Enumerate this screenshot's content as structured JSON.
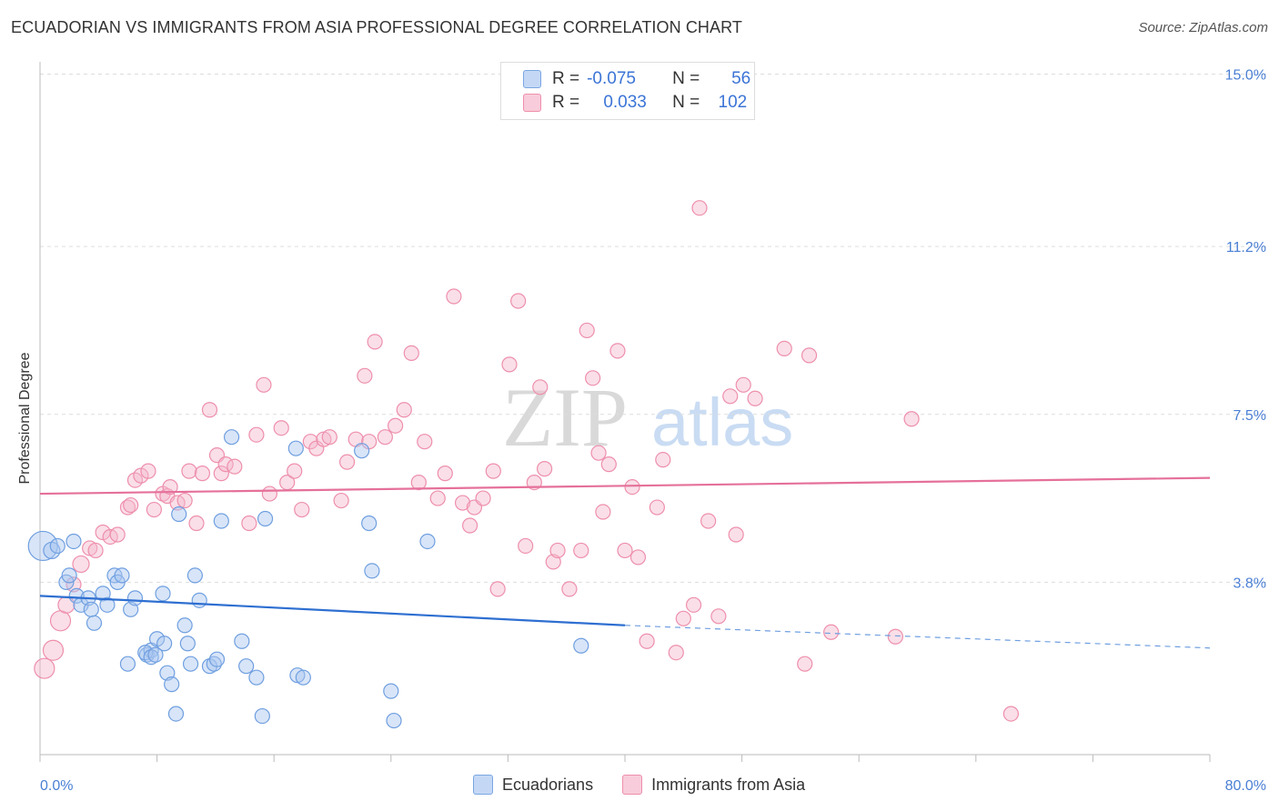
{
  "header": {
    "title": "ECUADORIAN VS IMMIGRANTS FROM ASIA PROFESSIONAL DEGREE CORRELATION CHART",
    "source": "Source: ZipAtlas.com"
  },
  "watermark": {
    "zip": "ZIP",
    "atlas": "atlas"
  },
  "legend": {
    "rows": [
      {
        "r_label": "R =",
        "r_value": "-0.075",
        "n_label": "N =",
        "n_value": "56",
        "color": "#a9c6ef"
      },
      {
        "r_label": "R =",
        "r_value": "0.033",
        "n_label": "N =",
        "n_value": "102",
        "color": "#f5b8cb"
      }
    ]
  },
  "bottom_legend": {
    "items": [
      {
        "label": "Ecuadorians",
        "color": "#a9c6ef"
      },
      {
        "label": "Immigrants from Asia",
        "color": "#f5b8cb"
      }
    ]
  },
  "chart_data": {
    "type": "scatter",
    "title": "ECUADORIAN VS IMMIGRANTS FROM ASIA PROFESSIONAL DEGREE CORRELATION CHART",
    "xlabel": "",
    "ylabel": "Professional Degree",
    "xlim": [
      0,
      80
    ],
    "ylim": [
      0,
      15
    ],
    "x_tick_labels": [
      "0.0%",
      "80.0%"
    ],
    "y_ticks": [
      3.8,
      7.5,
      11.2,
      15.0
    ],
    "y_tick_labels": [
      "3.8%",
      "7.5%",
      "11.2%",
      "15.0%"
    ],
    "grid": "horizontal-dashed",
    "series": [
      {
        "name": "Ecuadorians",
        "color": "#6f9fe0",
        "fill": "#a9c6ef",
        "trend": {
          "x0": 0,
          "y0": 3.5,
          "x1": 40,
          "y1": 2.85,
          "x_dash_end": 80,
          "y_dash_end": 2.35
        },
        "points": [
          [
            0.2,
            4.6,
            16
          ],
          [
            0.8,
            4.5,
            9
          ],
          [
            1.2,
            4.6,
            8
          ],
          [
            2.3,
            4.7,
            8
          ],
          [
            1.8,
            3.8,
            8
          ],
          [
            2.0,
            3.95,
            8
          ],
          [
            2.5,
            3.5,
            8
          ],
          [
            2.8,
            3.3,
            8
          ],
          [
            3.3,
            3.45,
            8
          ],
          [
            3.5,
            3.2,
            8
          ],
          [
            3.7,
            2.9,
            8
          ],
          [
            4.3,
            3.55,
            8
          ],
          [
            4.6,
            3.3,
            8
          ],
          [
            5.1,
            3.95,
            8
          ],
          [
            5.3,
            3.8,
            8
          ],
          [
            5.6,
            3.95,
            8
          ],
          [
            6.2,
            3.2,
            8
          ],
          [
            6.5,
            3.45,
            8
          ],
          [
            7.3,
            2.2,
            8
          ],
          [
            7.6,
            2.3,
            8
          ],
          [
            7.2,
            2.25,
            8
          ],
          [
            8.0,
            2.55,
            8
          ],
          [
            8.5,
            2.45,
            8
          ],
          [
            7.6,
            2.15,
            8
          ],
          [
            7.9,
            2.2,
            8
          ],
          [
            8.4,
            3.55,
            8
          ],
          [
            8.7,
            1.8,
            8
          ],
          [
            9.0,
            1.55,
            8
          ],
          [
            9.3,
            0.9,
            8
          ],
          [
            9.5,
            5.3,
            8
          ],
          [
            9.9,
            2.85,
            8
          ],
          [
            10.1,
            2.45,
            8
          ],
          [
            10.3,
            2.0,
            8
          ],
          [
            10.6,
            3.95,
            8
          ],
          [
            10.9,
            3.4,
            8
          ],
          [
            11.6,
            1.95,
            8
          ],
          [
            11.9,
            2.0,
            8
          ],
          [
            12.1,
            2.1,
            8
          ],
          [
            12.4,
            5.15,
            8
          ],
          [
            13.1,
            7.0,
            8
          ],
          [
            13.8,
            2.5,
            8
          ],
          [
            14.1,
            1.95,
            8
          ],
          [
            14.8,
            1.7,
            8
          ],
          [
            15.2,
            0.85,
            8
          ],
          [
            15.4,
            5.2,
            8
          ],
          [
            17.5,
            6.75,
            8
          ],
          [
            17.6,
            1.75,
            8
          ],
          [
            18.0,
            1.7,
            8
          ],
          [
            22.0,
            6.7,
            8
          ],
          [
            22.5,
            5.1,
            8
          ],
          [
            22.7,
            4.05,
            8
          ],
          [
            24.0,
            1.4,
            8
          ],
          [
            24.2,
            0.75,
            8
          ],
          [
            26.5,
            4.7,
            8
          ],
          [
            37.0,
            2.4,
            8
          ],
          [
            6.0,
            2.0,
            8
          ]
        ]
      },
      {
        "name": "Immigrants from Asia",
        "color": "#ee8fac",
        "fill": "#f5b8cb",
        "trend": {
          "x0": 0,
          "y0": 5.75,
          "x1": 80,
          "y1": 6.1
        },
        "points": [
          [
            0.3,
            1.9,
            11
          ],
          [
            0.9,
            2.3,
            11
          ],
          [
            1.4,
            2.95,
            11
          ],
          [
            1.8,
            3.3,
            9
          ],
          [
            2.3,
            3.75,
            8
          ],
          [
            2.8,
            4.2,
            9
          ],
          [
            3.4,
            4.55,
            8
          ],
          [
            3.8,
            4.5,
            8
          ],
          [
            4.3,
            4.9,
            8
          ],
          [
            4.8,
            4.8,
            8
          ],
          [
            5.3,
            4.85,
            8
          ],
          [
            6.0,
            5.45,
            8
          ],
          [
            6.2,
            5.5,
            8
          ],
          [
            6.5,
            6.05,
            8
          ],
          [
            6.9,
            6.15,
            8
          ],
          [
            7.4,
            6.25,
            8
          ],
          [
            7.8,
            5.4,
            8
          ],
          [
            8.4,
            5.75,
            8
          ],
          [
            8.7,
            5.7,
            8
          ],
          [
            8.9,
            5.9,
            8
          ],
          [
            9.4,
            5.55,
            8
          ],
          [
            9.9,
            5.6,
            8
          ],
          [
            10.2,
            6.25,
            8
          ],
          [
            10.7,
            5.1,
            8
          ],
          [
            11.1,
            6.2,
            8
          ],
          [
            11.6,
            7.6,
            8
          ],
          [
            12.1,
            6.6,
            8
          ],
          [
            12.4,
            6.2,
            8
          ],
          [
            12.7,
            6.4,
            8
          ],
          [
            13.3,
            6.35,
            8
          ],
          [
            14.3,
            5.1,
            8
          ],
          [
            14.8,
            7.05,
            8
          ],
          [
            15.3,
            8.15,
            8
          ],
          [
            15.7,
            5.75,
            8
          ],
          [
            16.5,
            7.2,
            8
          ],
          [
            16.9,
            6.0,
            8
          ],
          [
            17.4,
            6.25,
            8
          ],
          [
            17.9,
            5.4,
            8
          ],
          [
            18.5,
            6.9,
            8
          ],
          [
            18.9,
            6.75,
            8
          ],
          [
            19.4,
            6.95,
            8
          ],
          [
            19.8,
            7.0,
            8
          ],
          [
            20.6,
            5.6,
            8
          ],
          [
            21.0,
            6.45,
            8
          ],
          [
            21.6,
            6.95,
            8
          ],
          [
            22.2,
            8.35,
            8
          ],
          [
            22.5,
            6.9,
            8
          ],
          [
            22.9,
            9.1,
            8
          ],
          [
            23.6,
            7.0,
            8
          ],
          [
            24.3,
            7.25,
            8
          ],
          [
            24.9,
            7.6,
            8
          ],
          [
            25.4,
            8.85,
            8
          ],
          [
            25.9,
            6.0,
            8
          ],
          [
            26.3,
            6.9,
            8
          ],
          [
            27.2,
            5.65,
            8
          ],
          [
            27.7,
            6.2,
            8
          ],
          [
            28.3,
            10.1,
            8
          ],
          [
            28.9,
            5.55,
            8
          ],
          [
            29.4,
            5.05,
            8
          ],
          [
            29.7,
            5.45,
            8
          ],
          [
            30.3,
            5.65,
            8
          ],
          [
            31.0,
            6.25,
            8
          ],
          [
            31.3,
            3.65,
            8
          ],
          [
            32.1,
            8.6,
            8
          ],
          [
            32.7,
            10.0,
            8
          ],
          [
            33.2,
            4.6,
            8
          ],
          [
            33.8,
            6.0,
            8
          ],
          [
            34.2,
            8.1,
            8
          ],
          [
            34.5,
            6.3,
            8
          ],
          [
            35.1,
            4.25,
            8
          ],
          [
            35.4,
            4.5,
            8
          ],
          [
            36.2,
            3.65,
            8
          ],
          [
            37.0,
            4.5,
            8
          ],
          [
            37.4,
            9.35,
            8
          ],
          [
            37.8,
            8.3,
            8
          ],
          [
            38.2,
            6.65,
            8
          ],
          [
            38.5,
            5.35,
            8
          ],
          [
            38.9,
            6.4,
            8
          ],
          [
            39.5,
            8.9,
            8
          ],
          [
            40.0,
            4.5,
            8
          ],
          [
            40.5,
            5.9,
            8
          ],
          [
            40.9,
            4.35,
            8
          ],
          [
            41.5,
            2.5,
            8
          ],
          [
            42.2,
            5.45,
            8
          ],
          [
            42.6,
            6.5,
            8
          ],
          [
            43.5,
            2.25,
            8
          ],
          [
            44.0,
            3.0,
            8
          ],
          [
            44.7,
            3.3,
            8
          ],
          [
            45.1,
            12.05,
            8
          ],
          [
            45.7,
            5.15,
            8
          ],
          [
            46.4,
            3.05,
            8
          ],
          [
            47.2,
            7.9,
            8
          ],
          [
            47.6,
            4.85,
            8
          ],
          [
            48.1,
            8.15,
            8
          ],
          [
            48.9,
            7.85,
            8
          ],
          [
            50.9,
            8.95,
            8
          ],
          [
            52.3,
            2.0,
            8
          ],
          [
            52.6,
            8.8,
            8
          ],
          [
            54.1,
            2.7,
            8
          ],
          [
            58.5,
            2.6,
            8
          ],
          [
            59.6,
            7.4,
            8
          ],
          [
            66.4,
            0.9,
            8
          ]
        ]
      }
    ]
  }
}
